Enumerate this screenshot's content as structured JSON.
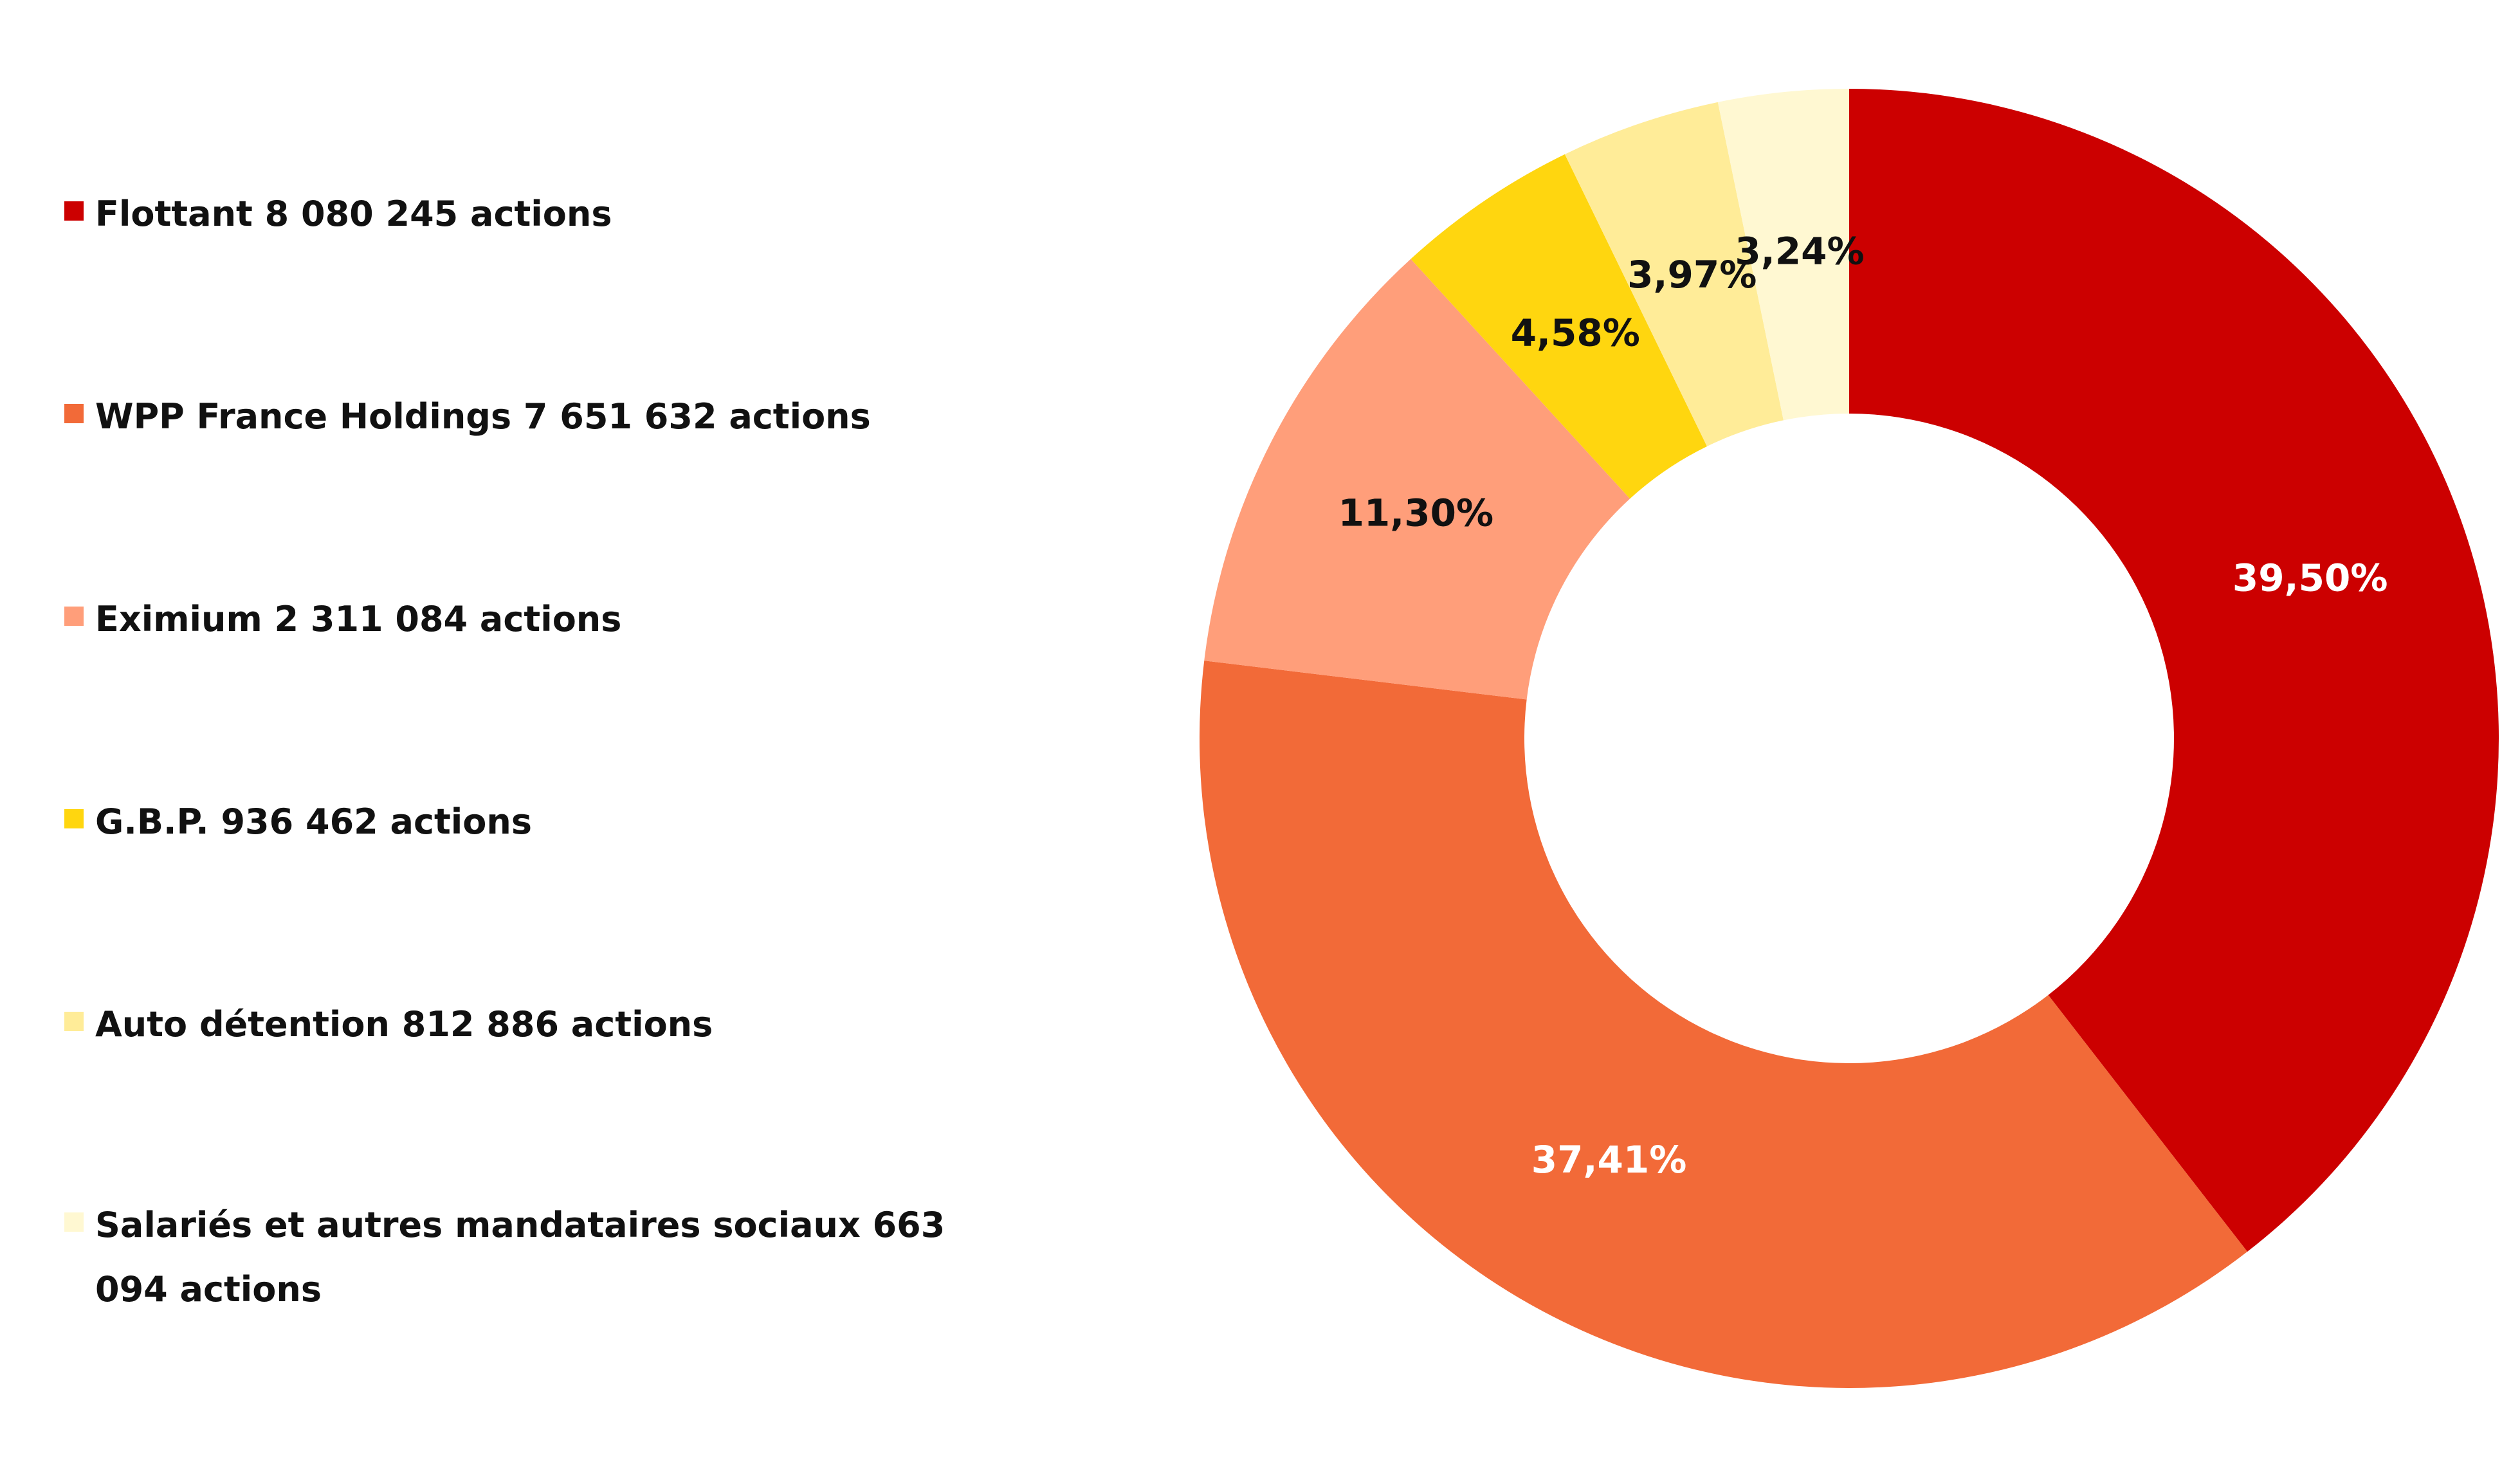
{
  "chart_data": {
    "type": "pie",
    "donut": true,
    "title": "",
    "legend_position": "left",
    "slices": [
      {
        "legend": "Flottant 8 080 245 actions",
        "label": "39,50%",
        "value": 39.5,
        "color": "#CC0000",
        "label_color": "#ffffff"
      },
      {
        "legend": "WPP France Holdings 7 651 632 actions",
        "label": "37,41%",
        "value": 37.41,
        "color": "#F26A38",
        "label_color": "#ffffff"
      },
      {
        "legend": "Eximium 2 311 084 actions",
        "label": "11,30%",
        "value": 11.3,
        "color": "#FF9E7A",
        "label_color": "#111111"
      },
      {
        "legend": "G.B.P. 936 462 actions",
        "label": "4,58%",
        "value": 4.58,
        "color": "#FFD60F",
        "label_color": "#111111"
      },
      {
        "legend": "Auto détention 812 886 actions",
        "label": "3,97%",
        "value": 3.97,
        "color": "#FFEC98",
        "label_color": "#111111"
      },
      {
        "legend": "Salariés et autres mandataires sociaux 663 094 actions",
        "label": "3,24%",
        "value": 3.24,
        "color": "#FFF8D2",
        "label_color": "#111111"
      }
    ]
  }
}
